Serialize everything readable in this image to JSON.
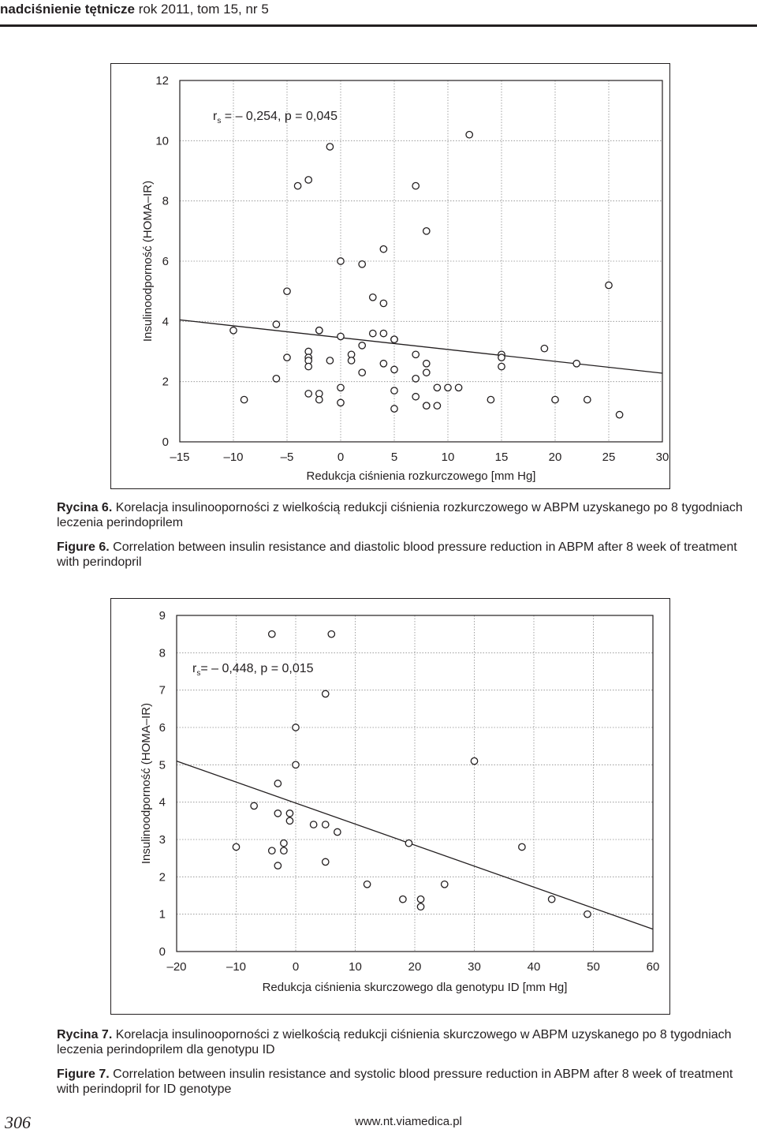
{
  "header": {
    "journal": "nadciśnienie tętnicze",
    "issue": " rok 2011, tom 15, nr 5"
  },
  "chart_data": [
    {
      "type": "scatter",
      "title": "",
      "xlabel": "Redukcja ciśnienia rozkurczowego [mm Hg]",
      "ylabel": "Insulinoodporność (HOMA–IR)",
      "xlim": [
        -15,
        30
      ],
      "ylim": [
        0,
        12
      ],
      "xticks": [
        -15,
        -10,
        -5,
        0,
        5,
        10,
        15,
        20,
        25,
        30
      ],
      "xtick_labels": [
        "–15",
        "–10",
        "–5",
        "0",
        "5",
        "10",
        "15",
        "20",
        "25",
        "30"
      ],
      "yticks": [
        0,
        2,
        4,
        6,
        8,
        10,
        12
      ],
      "ytick_labels": [
        "0",
        "2",
        "4",
        "6",
        "8",
        "10",
        "12"
      ],
      "grid": true,
      "annotation": {
        "prefix": "r",
        "sub": "s",
        "text": " = – 0,254, p = 0,045"
      },
      "regression": {
        "x": [
          -15,
          30
        ],
        "y": [
          4.05,
          2.28
        ]
      },
      "points": [
        [
          -10,
          3.7
        ],
        [
          -9,
          1.4
        ],
        [
          -6,
          3.9
        ],
        [
          -6,
          2.1
        ],
        [
          -5,
          5.0
        ],
        [
          -5,
          2.8
        ],
        [
          -4,
          8.5
        ],
        [
          -3,
          8.7
        ],
        [
          -3,
          3.0
        ],
        [
          -3,
          2.8
        ],
        [
          -3,
          2.7
        ],
        [
          -3,
          2.5
        ],
        [
          -3,
          1.6
        ],
        [
          -2,
          3.7
        ],
        [
          -2,
          3.7
        ],
        [
          -2,
          1.6
        ],
        [
          -2,
          1.4
        ],
        [
          -1,
          9.8
        ],
        [
          -1,
          2.7
        ],
        [
          0,
          6.0
        ],
        [
          0,
          3.5
        ],
        [
          0,
          1.8
        ],
        [
          0,
          1.3
        ],
        [
          1,
          2.9
        ],
        [
          1,
          2.7
        ],
        [
          2,
          5.9
        ],
        [
          2,
          3.2
        ],
        [
          2,
          2.3
        ],
        [
          3,
          4.8
        ],
        [
          3,
          3.6
        ],
        [
          4,
          6.4
        ],
        [
          4,
          4.6
        ],
        [
          4,
          3.6
        ],
        [
          4,
          2.6
        ],
        [
          5,
          3.4
        ],
        [
          5,
          3.4
        ],
        [
          5,
          2.4
        ],
        [
          5,
          1.7
        ],
        [
          5,
          1.1
        ],
        [
          7,
          8.5
        ],
        [
          7,
          2.9
        ],
        [
          7,
          2.1
        ],
        [
          7,
          1.5
        ],
        [
          8,
          7.0
        ],
        [
          8,
          2.6
        ],
        [
          8,
          2.3
        ],
        [
          8,
          1.2
        ],
        [
          8,
          1.2
        ],
        [
          9,
          1.8
        ],
        [
          9,
          1.2
        ],
        [
          10,
          1.8
        ],
        [
          11,
          1.8
        ],
        [
          12,
          10.2
        ],
        [
          14,
          1.4
        ],
        [
          15,
          2.9
        ],
        [
          15,
          2.8
        ],
        [
          15,
          2.5
        ],
        [
          19,
          3.1
        ],
        [
          20,
          1.4
        ],
        [
          22,
          2.6
        ],
        [
          23,
          1.4
        ],
        [
          25,
          5.2
        ],
        [
          26,
          0.9
        ]
      ]
    },
    {
      "type": "scatter",
      "title": "",
      "xlabel": "Redukcja ciśnienia skurczowego dla genotypu ID [mm Hg]",
      "ylabel": "Insulinoodporność (HOMA–IR)",
      "xlim": [
        -20,
        60
      ],
      "ylim": [
        0,
        9
      ],
      "xticks": [
        -20,
        -10,
        0,
        10,
        20,
        30,
        40,
        50,
        60
      ],
      "xtick_labels": [
        "–20",
        "–10",
        "0",
        "10",
        "20",
        "30",
        "40",
        "50",
        "60"
      ],
      "yticks": [
        0,
        1,
        2,
        3,
        4,
        5,
        6,
        7,
        8,
        9
      ],
      "ytick_labels": [
        "0",
        "1",
        "2",
        "3",
        "4",
        "5",
        "6",
        "7",
        "8",
        "9"
      ],
      "grid": true,
      "annotation": {
        "prefix": "r",
        "sub": "s",
        "text": "= – 0,448, p = 0,015"
      },
      "regression": {
        "x": [
          -20,
          60
        ],
        "y": [
          5.1,
          0.6
        ]
      },
      "points": [
        [
          -4,
          8.5
        ],
        [
          6,
          8.5
        ],
        [
          5,
          6.9
        ],
        [
          0,
          6.0
        ],
        [
          0,
          5.0
        ],
        [
          30,
          5.1
        ],
        [
          -3,
          4.5
        ],
        [
          -7,
          3.9
        ],
        [
          -3,
          3.7
        ],
        [
          -1,
          3.7
        ],
        [
          -1,
          3.5
        ],
        [
          3,
          3.4
        ],
        [
          5,
          3.4
        ],
        [
          7,
          3.2
        ],
        [
          -10,
          2.8
        ],
        [
          -2,
          2.9
        ],
        [
          -4,
          2.7
        ],
        [
          -2,
          2.7
        ],
        [
          -3,
          2.3
        ],
        [
          5,
          2.4
        ],
        [
          19,
          2.9
        ],
        [
          38,
          2.8
        ],
        [
          12,
          1.8
        ],
        [
          25,
          1.8
        ],
        [
          18,
          1.4
        ],
        [
          21,
          1.4
        ],
        [
          21,
          1.2
        ],
        [
          43,
          1.4
        ],
        [
          49,
          1.0
        ]
      ]
    }
  ],
  "captions": {
    "fig6_pl_label": "Rycina 6.",
    "fig6_pl_text": " Korelacja insulinooporności z wielkością redukcji ciśnienia rozkurczowego w ABPM uzyskanego po 8 tygodniach leczenia perindoprilem",
    "fig6_en_label": "Figure 6.",
    "fig6_en_text": " Correlation between insulin resistance and diastolic blood pressure reduction in ABPM after 8 week of treatment with perindopril",
    "fig7_pl_label": "Rycina 7.",
    "fig7_pl_text": " Korelacja insulinooporności z wielkością redukcji ciśnienia skurczowego w ABPM uzyskanego po 8 tygodniach leczenia perindoprilem dla genotypu ID",
    "fig7_en_label": "Figure 7.",
    "fig7_en_text": " Correlation between insulin resistance and systolic blood pressure reduction in ABPM after 8 week of treatment with perindopril for ID genotype"
  },
  "footer": {
    "page": "306",
    "url": "www.nt.viamedica.pl"
  }
}
